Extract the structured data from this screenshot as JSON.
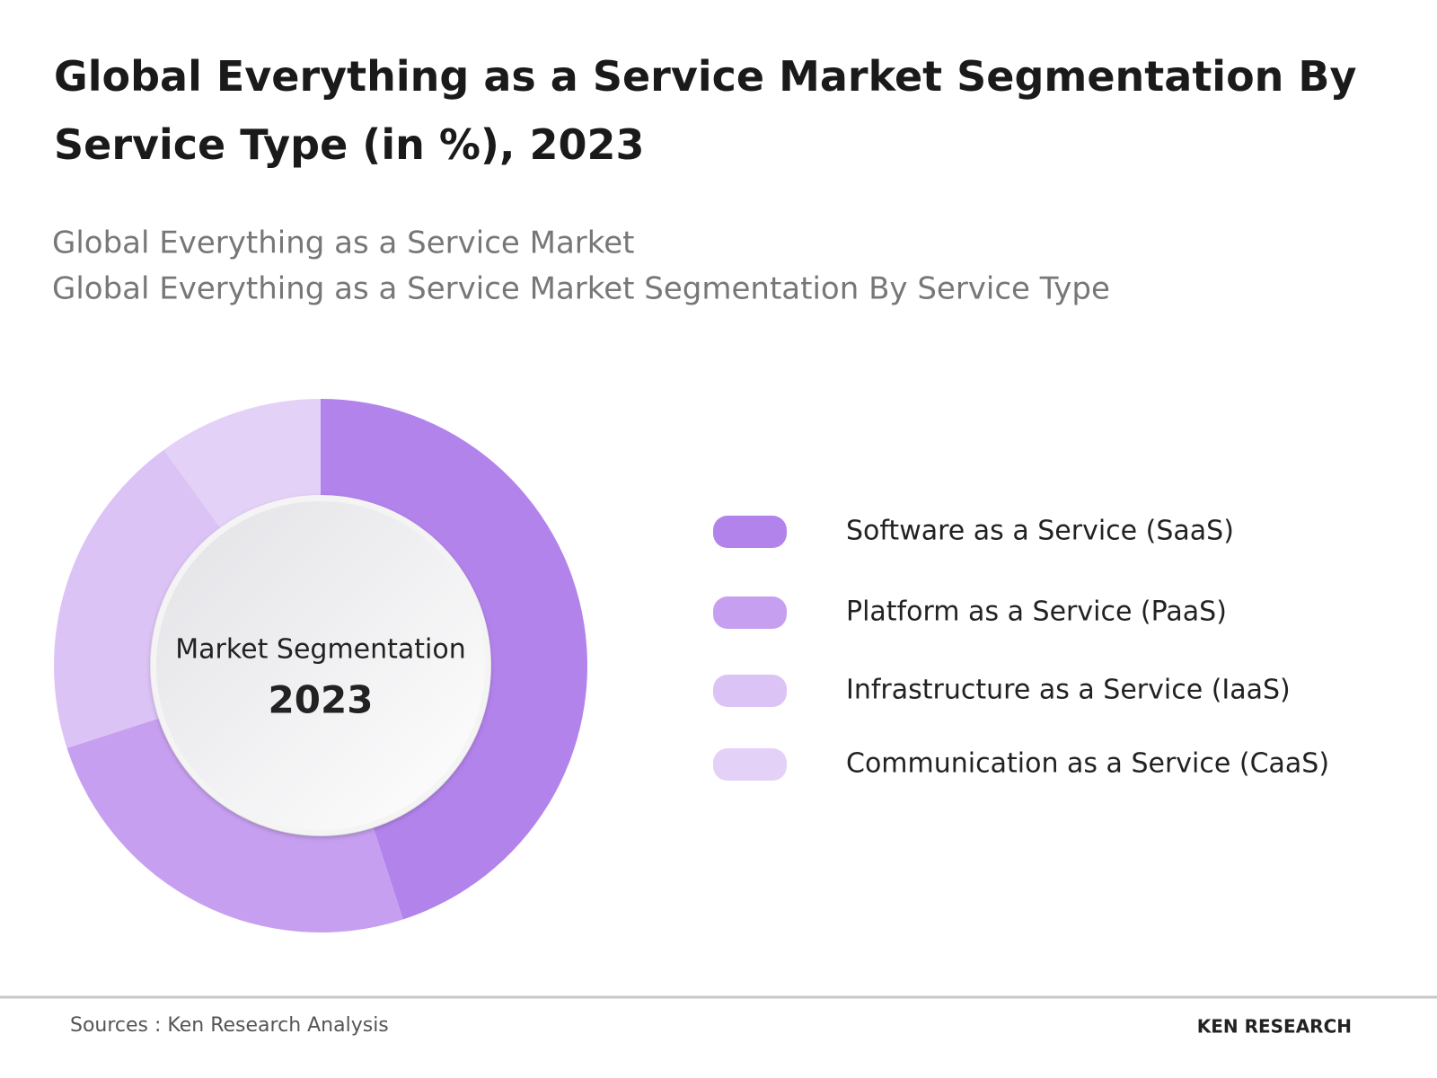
{
  "chart_data": {
    "type": "donut",
    "title": "Global Everything as a Service Market Segmentation By Service Type (in %), 2023",
    "subtitles": [
      "Global Everything as a Service Market",
      "Global Everything as a Service Market Segmentation By Service Type"
    ],
    "center_label": "Market Segmentation",
    "center_year": "2023",
    "categories": [
      "Software as a Service (SaaS)",
      "Platform as a Service (PaaS)",
      "Infrastructure as a Service (IaaS)",
      "Communication as a Service (CaaS)"
    ],
    "values": [
      45,
      25,
      20,
      10
    ],
    "colors": [
      "#b383ec",
      "#c79ff0",
      "#dcc3f6",
      "#e4d1f8"
    ]
  },
  "footer": {
    "source": "Sources : Ken Research Analysis",
    "logo": "KEN RESEARCH"
  }
}
